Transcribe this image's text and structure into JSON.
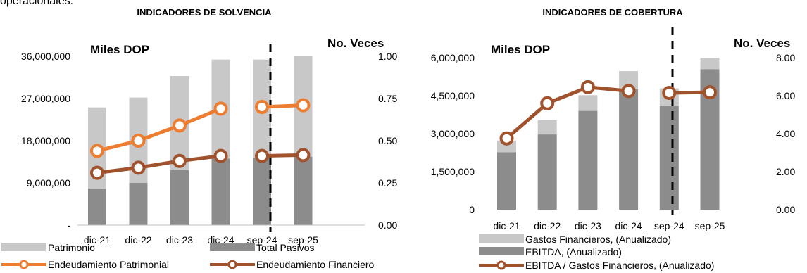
{
  "page": {
    "top_snippet": "operacionales:"
  },
  "chart_data": [
    {
      "type": "bar",
      "title": "INDICADORES DE SOLVENCIA",
      "left_axis_title": "Miles DOP",
      "right_axis_title": "No. Veces",
      "categories": [
        "dic-21",
        "dic-22",
        "dic-23",
        "dic-24",
        "sep-24",
        "sep-25"
      ],
      "left_ticks": [
        "-",
        "9,000,000",
        "18,000,000",
        "27,000,000",
        "36,000,000"
      ],
      "right_ticks": [
        "0.00",
        "0.25",
        "0.50",
        "0.75",
        "1.00"
      ],
      "ylim": [
        0,
        36000000
      ],
      "y2lim": [
        0,
        1
      ],
      "stacked": true,
      "bar_series": [
        {
          "name": "Total Pasivos",
          "color": "#8c8c8c",
          "values": [
            7800000,
            9000000,
            11700000,
            14200000,
            14400000,
            14600000
          ]
        },
        {
          "name": "Patrimonio",
          "color": "#c8c8c8",
          "values": [
            17300000,
            18200000,
            20100000,
            21100000,
            20900000,
            21400000
          ]
        }
      ],
      "line_series": [
        {
          "name": "Endeudamiento Patrimonial",
          "color": "#ed7d31",
          "values": [
            0.44,
            0.5,
            0.59,
            0.69,
            0.7,
            0.71
          ]
        },
        {
          "name": "Endeudamiento Financiero",
          "color": "#a0522d",
          "values": [
            0.31,
            0.34,
            0.38,
            0.41,
            0.41,
            0.415
          ]
        }
      ],
      "legend": [
        "Patrimonio",
        "Total Pasivos",
        "Endeudamiento Patrimonial",
        "Endeudamiento Financiero"
      ],
      "divider_after_index": 3,
      "grid": false,
      "legend_position": "bottom"
    },
    {
      "type": "bar",
      "title": "INDICADORES DE COBERTURA",
      "left_axis_title": "Miles DOP",
      "right_axis_title": "No. Veces",
      "categories": [
        "dic-21",
        "dic-22",
        "dic-23",
        "dic-24",
        "sep-24",
        "sep-25"
      ],
      "left_ticks": [
        "0",
        "1,500,000",
        "3,000,000",
        "4,500,000",
        "6,000,000"
      ],
      "right_ticks": [
        "0.00",
        "2.00",
        "4.00",
        "6.00",
        "8.00"
      ],
      "ylim": [
        0,
        6000000
      ],
      "y2lim": [
        0,
        8
      ],
      "stacked": true,
      "bar_series": [
        {
          "name": "EBITDA, (Anualizado)",
          "color": "#8c8c8c",
          "values": [
            2270000,
            2970000,
            3900000,
            4750000,
            4110000,
            5550000
          ]
        },
        {
          "name": "Gastos Financieros, (Anualizado)",
          "color": "#c8c8c8",
          "values": [
            460000,
            560000,
            620000,
            720000,
            680000,
            450000
          ]
        }
      ],
      "line_series": [
        {
          "name": "EBITDA / Gastos Financieros, (Anualizado)",
          "color": "#a0522d",
          "values": [
            3.75,
            5.6,
            6.45,
            6.25,
            6.15,
            6.18
          ]
        }
      ],
      "legend": [
        "Gastos Financieros, (Anualizado)",
        "EBITDA, (Anualizado)",
        "EBITDA / Gastos Financieros, (Anualizado)"
      ],
      "divider_after_index": 3,
      "grid": false,
      "legend_position": "bottom"
    }
  ]
}
